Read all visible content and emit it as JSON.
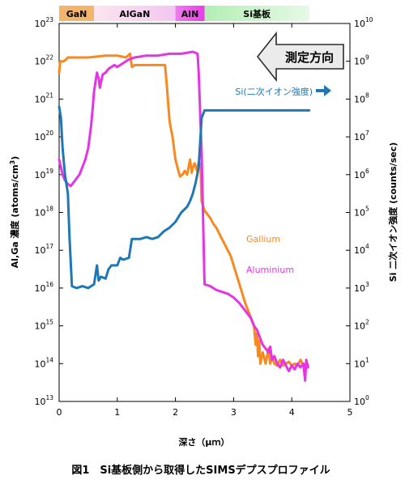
{
  "chart_data": {
    "type": "line",
    "caption": "図1　Si基板側から取得したSIMSデプスプロファイル",
    "xlabel": "深さ（μｍ）",
    "ylabel_left": "Al,Ga 濃度 (atoms/cm3)",
    "ylabel_right": "Si 二次イオン強度 (counts/sec)",
    "xlim": [
      0,
      5
    ],
    "ylim_left_exp": [
      13,
      23
    ],
    "ylim_right_exp": [
      0,
      10
    ],
    "log_scale": true,
    "grid": false,
    "xticks": [
      "0",
      "1",
      "2",
      "3",
      "4",
      "5"
    ],
    "yticks_left": [
      {
        "base": "10",
        "exp": "13"
      },
      {
        "base": "10",
        "exp": "14"
      },
      {
        "base": "10",
        "exp": "15"
      },
      {
        "base": "10",
        "exp": "16"
      },
      {
        "base": "10",
        "exp": "17"
      },
      {
        "base": "10",
        "exp": "18"
      },
      {
        "base": "10",
        "exp": "19"
      },
      {
        "base": "10",
        "exp": "20"
      },
      {
        "base": "10",
        "exp": "21"
      },
      {
        "base": "10",
        "exp": "22"
      },
      {
        "base": "10",
        "exp": "23"
      }
    ],
    "yticks_right": [
      {
        "base": "10",
        "exp": "0"
      },
      {
        "base": "10",
        "exp": "1"
      },
      {
        "base": "10",
        "exp": "2"
      },
      {
        "base": "10",
        "exp": "3"
      },
      {
        "base": "10",
        "exp": "4"
      },
      {
        "base": "10",
        "exp": "5"
      },
      {
        "base": "10",
        "exp": "6"
      },
      {
        "base": "10",
        "exp": "7"
      },
      {
        "base": "10",
        "exp": "8"
      },
      {
        "base": "10",
        "exp": "9"
      },
      {
        "base": "10",
        "exp": "10"
      }
    ],
    "layers": [
      {
        "label": "GaN",
        "x0": 0.0,
        "x1": 0.6,
        "color": "#f2b56b"
      },
      {
        "label": "AlGaN",
        "x0": 0.6,
        "x1": 2.0,
        "gradient": [
          "#fbe5ef",
          "#f3c6f0"
        ]
      },
      {
        "label": "AlN",
        "x0": 2.0,
        "x1": 2.5,
        "gradient": [
          "#ee7dee",
          "#e93ce9"
        ]
      },
      {
        "label": "Si基板",
        "x0": 2.5,
        "x1": 4.3,
        "gradient": [
          "#b3eeb3",
          "#e6f9e6"
        ]
      }
    ],
    "direction_label": "測定方向",
    "series": [
      {
        "name": "Gallium",
        "axis": "left",
        "color": "#f7891f",
        "points": [
          [
            0.0,
            21.7
          ],
          [
            0.02,
            22.0
          ],
          [
            0.05,
            22.0
          ],
          [
            0.08,
            22.0
          ],
          [
            0.12,
            22.05
          ],
          [
            0.15,
            22.1
          ],
          [
            0.2,
            22.1
          ],
          [
            0.3,
            22.1
          ],
          [
            0.5,
            22.1
          ],
          [
            0.8,
            22.15
          ],
          [
            1.0,
            22.15
          ],
          [
            1.15,
            22.1
          ],
          [
            1.22,
            22.2
          ],
          [
            1.25,
            21.85
          ],
          [
            1.3,
            21.9
          ],
          [
            1.6,
            21.9
          ],
          [
            1.82,
            21.9
          ],
          [
            1.85,
            21.4
          ],
          [
            1.9,
            20.4
          ],
          [
            1.95,
            20.0
          ],
          [
            2.0,
            19.4
          ],
          [
            2.05,
            19.1
          ],
          [
            2.08,
            18.95
          ],
          [
            2.12,
            19.0
          ],
          [
            2.16,
            19.1
          ],
          [
            2.2,
            19.0
          ],
          [
            2.25,
            19.4
          ],
          [
            2.28,
            19.05
          ],
          [
            2.3,
            19.2
          ],
          [
            2.33,
            19.3
          ],
          [
            2.37,
            19.1
          ],
          [
            2.4,
            19.35
          ],
          [
            2.43,
            19.25
          ],
          [
            2.45,
            18.3
          ],
          [
            2.5,
            18.05
          ],
          [
            2.55,
            17.95
          ],
          [
            2.6,
            17.85
          ],
          [
            2.65,
            17.7
          ],
          [
            2.7,
            17.6
          ],
          [
            2.75,
            17.45
          ],
          [
            2.8,
            17.3
          ],
          [
            2.85,
            17.15
          ],
          [
            2.9,
            17.0
          ],
          [
            2.95,
            16.85
          ],
          [
            3.0,
            16.6
          ],
          [
            3.05,
            16.35
          ],
          [
            3.1,
            16.1
          ],
          [
            3.15,
            15.85
          ],
          [
            3.2,
            15.6
          ],
          [
            3.25,
            15.4
          ],
          [
            3.3,
            15.2
          ],
          [
            3.35,
            15.0
          ],
          [
            3.38,
            14.5
          ],
          [
            3.4,
            14.8
          ],
          [
            3.42,
            14.2
          ],
          [
            3.44,
            14.6
          ],
          [
            3.46,
            14.0
          ],
          [
            3.5,
            14.3
          ],
          [
            3.55,
            14.0
          ],
          [
            3.6,
            14.4
          ],
          [
            3.63,
            14.0
          ],
          [
            3.66,
            14.2
          ],
          [
            3.7,
            14.0
          ],
          [
            3.75,
            13.95
          ],
          [
            3.8,
            14.1
          ],
          [
            3.85,
            13.95
          ],
          [
            3.9,
            14.0
          ],
          [
            3.95,
            14.05
          ],
          [
            4.0,
            13.95
          ],
          [
            4.05,
            14.0
          ],
          [
            4.1,
            13.95
          ],
          [
            4.15,
            14.1
          ],
          [
            4.2,
            13.95
          ],
          [
            4.25,
            14.0
          ],
          [
            4.28,
            13.95
          ]
        ]
      },
      {
        "name": "Aluminium",
        "axis": "left",
        "color": "#e534e5",
        "points": [
          [
            0.0,
            19.4
          ],
          [
            0.03,
            19.2
          ],
          [
            0.06,
            19.0
          ],
          [
            0.1,
            18.85
          ],
          [
            0.15,
            18.75
          ],
          [
            0.2,
            18.7
          ],
          [
            0.25,
            18.8
          ],
          [
            0.3,
            18.9
          ],
          [
            0.35,
            19.0
          ],
          [
            0.4,
            19.2
          ],
          [
            0.45,
            19.4
          ],
          [
            0.5,
            19.7
          ],
          [
            0.55,
            20.3
          ],
          [
            0.58,
            20.8
          ],
          [
            0.6,
            21.2
          ],
          [
            0.62,
            21.4
          ],
          [
            0.65,
            21.7
          ],
          [
            0.68,
            21.55
          ],
          [
            0.7,
            21.3
          ],
          [
            0.72,
            21.45
          ],
          [
            0.75,
            21.65
          ],
          [
            0.8,
            21.7
          ],
          [
            0.85,
            21.8
          ],
          [
            0.9,
            21.85
          ],
          [
            0.95,
            21.9
          ],
          [
            1.0,
            21.85
          ],
          [
            1.05,
            21.9
          ],
          [
            1.1,
            21.95
          ],
          [
            1.15,
            22.0
          ],
          [
            1.2,
            22.05
          ],
          [
            1.3,
            22.1
          ],
          [
            1.5,
            22.15
          ],
          [
            1.7,
            22.15
          ],
          [
            1.9,
            22.2
          ],
          [
            2.1,
            22.2
          ],
          [
            2.3,
            22.25
          ],
          [
            2.38,
            22.2
          ],
          [
            2.4,
            21.7
          ],
          [
            2.45,
            19.6
          ],
          [
            2.5,
            16.1
          ],
          [
            2.6,
            16.05
          ],
          [
            2.7,
            15.95
          ],
          [
            2.8,
            15.9
          ],
          [
            2.9,
            15.85
          ],
          [
            3.0,
            15.75
          ],
          [
            3.1,
            15.6
          ],
          [
            3.2,
            15.4
          ],
          [
            3.3,
            15.2
          ],
          [
            3.35,
            15.0
          ],
          [
            3.4,
            14.9
          ],
          [
            3.45,
            14.7
          ],
          [
            3.5,
            14.5
          ],
          [
            3.55,
            14.4
          ],
          [
            3.6,
            14.3
          ],
          [
            3.63,
            14.45
          ],
          [
            3.66,
            14.1
          ],
          [
            3.7,
            14.2
          ],
          [
            3.75,
            14.0
          ],
          [
            3.8,
            13.9
          ],
          [
            3.85,
            14.1
          ],
          [
            3.9,
            13.95
          ],
          [
            3.95,
            13.8
          ],
          [
            4.0,
            13.95
          ],
          [
            4.05,
            13.85
          ],
          [
            4.1,
            14.0
          ],
          [
            4.15,
            13.9
          ],
          [
            4.2,
            14.0
          ],
          [
            4.23,
            13.55
          ],
          [
            4.25,
            14.1
          ],
          [
            4.28,
            13.9
          ]
        ]
      },
      {
        "name": "Si(二次イオン強度)",
        "axis": "right",
        "color": "#1f77b4",
        "points": [
          [
            0.0,
            20.8
          ],
          [
            0.03,
            20.5
          ],
          [
            0.06,
            19.7
          ],
          [
            0.1,
            19.0
          ],
          [
            0.15,
            18.5
          ],
          [
            0.18,
            17.3
          ],
          [
            0.22,
            16.05
          ],
          [
            0.3,
            16.0
          ],
          [
            0.4,
            16.05
          ],
          [
            0.5,
            16.0
          ],
          [
            0.6,
            16.1
          ],
          [
            0.65,
            16.6
          ],
          [
            0.68,
            16.2
          ],
          [
            0.72,
            16.3
          ],
          [
            0.8,
            16.25
          ],
          [
            0.85,
            16.5
          ],
          [
            0.9,
            16.6
          ],
          [
            1.0,
            16.6
          ],
          [
            1.05,
            16.8
          ],
          [
            1.1,
            16.75
          ],
          [
            1.2,
            16.8
          ],
          [
            1.25,
            17.3
          ],
          [
            1.3,
            17.3
          ],
          [
            1.4,
            17.3
          ],
          [
            1.5,
            17.35
          ],
          [
            1.6,
            17.3
          ],
          [
            1.7,
            17.35
          ],
          [
            1.8,
            17.5
          ],
          [
            1.9,
            17.6
          ],
          [
            2.0,
            17.75
          ],
          [
            2.1,
            18.0
          ],
          [
            2.2,
            18.15
          ],
          [
            2.25,
            18.3
          ],
          [
            2.3,
            18.5
          ],
          [
            2.35,
            18.8
          ],
          [
            2.4,
            19.2
          ],
          [
            2.45,
            20.5
          ],
          [
            2.5,
            20.7
          ],
          [
            2.6,
            20.7
          ],
          [
            3.0,
            20.7
          ],
          [
            3.5,
            20.7
          ],
          [
            4.0,
            20.7
          ],
          [
            4.3,
            20.7
          ]
        ]
      }
    ]
  }
}
